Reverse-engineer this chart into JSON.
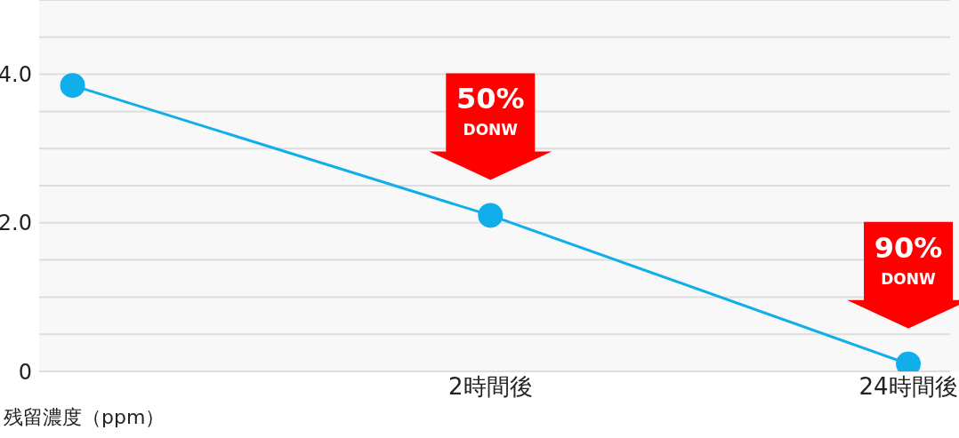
{
  "chart_data": {
    "type": "line",
    "ylabel": "残留濃度（ppm）",
    "categories": [
      null,
      "2時間後",
      "24時間後"
    ],
    "series": [
      {
        "color": "#10aeea",
        "values": [
          3.85,
          2.1,
          0.1
        ]
      }
    ],
    "ylim": [
      0,
      5
    ],
    "yticks": [
      {
        "value": 0,
        "label": "0"
      },
      {
        "value": 0.5,
        "label": null
      },
      {
        "value": 1,
        "label": null
      },
      {
        "value": 1.5,
        "label": null
      },
      {
        "value": 2,
        "label": "2.0"
      },
      {
        "value": 2.5,
        "label": null
      },
      {
        "value": 3,
        "label": null
      },
      {
        "value": 3.5,
        "label": null
      },
      {
        "value": 4,
        "label": "4.0"
      },
      {
        "value": 4.5,
        "label": null
      }
    ],
    "grid": "y",
    "marker": "circle",
    "line_style": "solid",
    "annotations": [
      {
        "text": "50%\nDONW",
        "x": "2時間後",
        "y": 2.1
      },
      {
        "text": "90%\nDONW",
        "x": "24時間後",
        "y": 0.1
      }
    ]
  }
}
